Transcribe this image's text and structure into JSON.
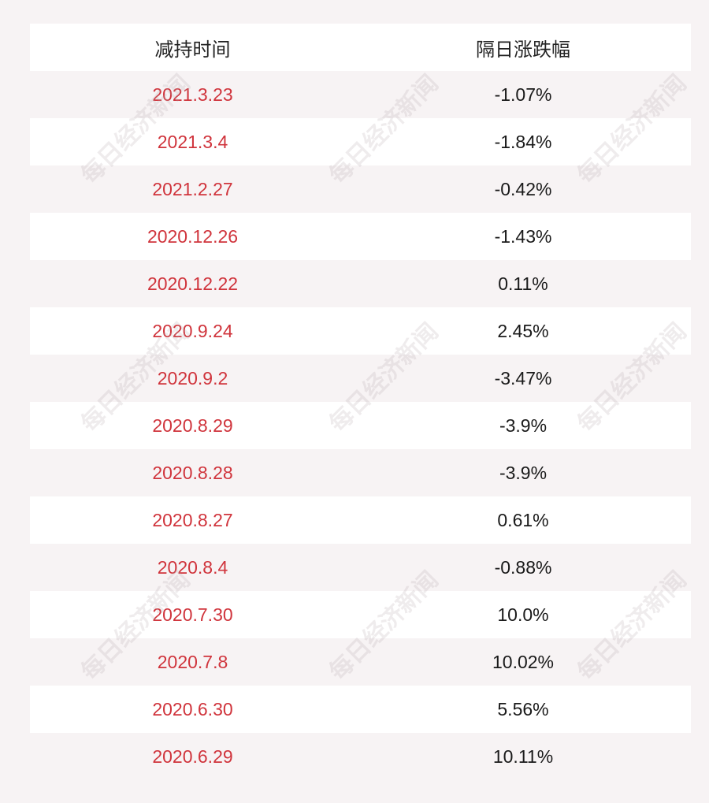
{
  "table": {
    "header": [
      "减持时间",
      "隔日涨跌幅"
    ],
    "rows": [
      [
        "2021.3.23",
        "-1.07%"
      ],
      [
        "2021.3.4",
        "-1.84%"
      ],
      [
        "2021.2.27",
        "-0.42%"
      ],
      [
        "2020.12.26",
        "-1.43%"
      ],
      [
        "2020.12.22",
        "0.11%"
      ],
      [
        "2020.9.24",
        "2.45%"
      ],
      [
        "2020.9.2",
        "-3.47%"
      ],
      [
        "2020.8.29",
        "-3.9%"
      ],
      [
        "2020.8.28",
        "-3.9%"
      ],
      [
        "2020.8.27",
        "0.61%"
      ],
      [
        "2020.8.4",
        "-0.88%"
      ],
      [
        "2020.7.30",
        "10.0%"
      ],
      [
        "2020.7.8",
        "10.02%"
      ],
      [
        "2020.6.30",
        "5.56%"
      ],
      [
        "2020.6.29",
        "10.11%"
      ]
    ]
  },
  "watermark": "每日经济新闻"
}
